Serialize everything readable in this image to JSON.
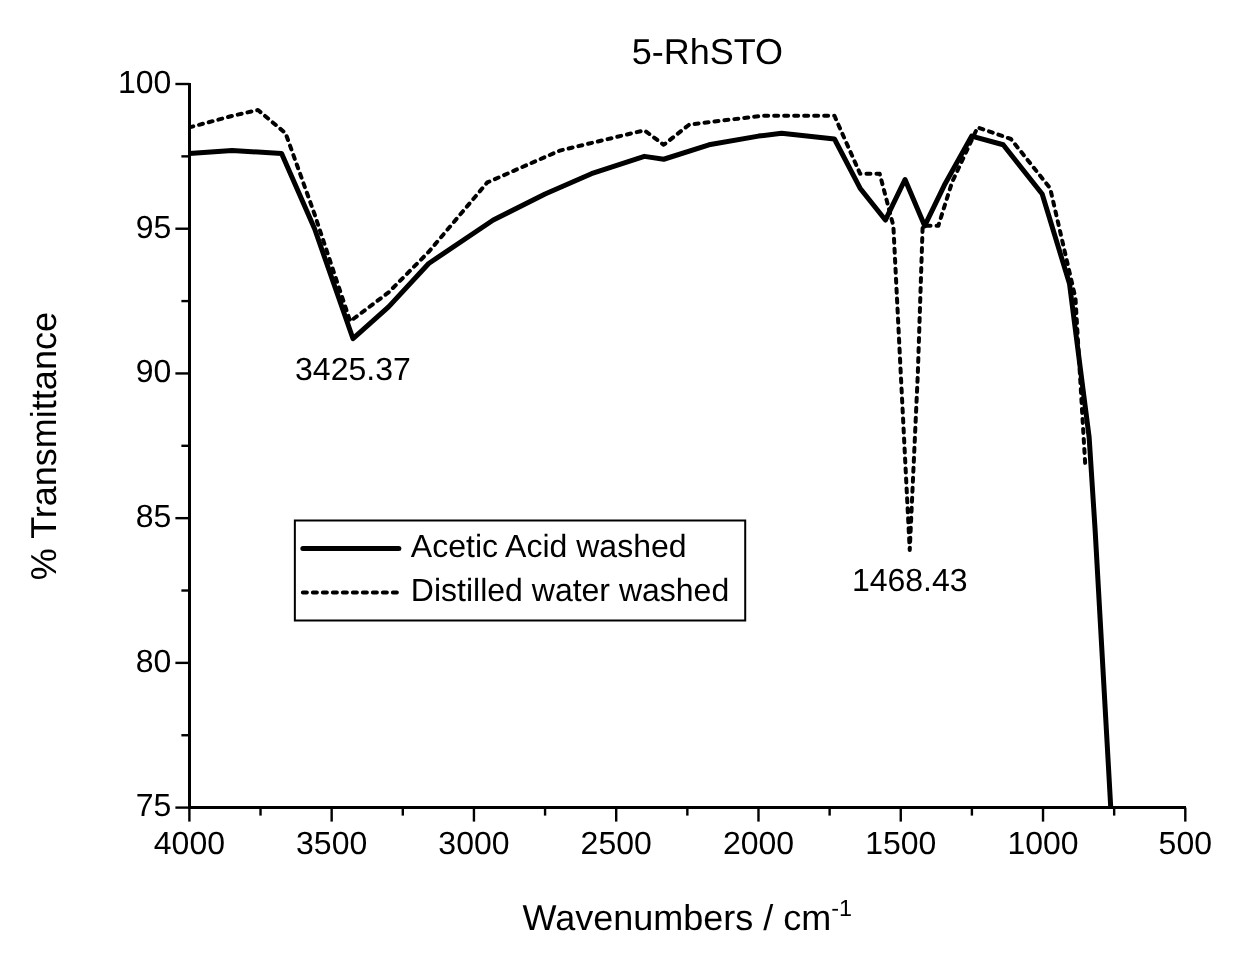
{
  "chart_data": {
    "type": "line",
    "title": "5-RhSTO",
    "xlabel": "Wavenumbers / cm$^{-1}$",
    "ylabel": "% Transmittance",
    "xlim": [
      4000,
      500
    ],
    "ylim": [
      75,
      100
    ],
    "xticks": [
      4000,
      {
        "value": 3750,
        "label": null
      },
      3500,
      {
        "value": 3250,
        "label": null
      },
      3000,
      {
        "value": 2750,
        "label": null
      },
      2500,
      {
        "value": 2250,
        "label": null
      },
      2000,
      {
        "value": 1750,
        "label": null
      },
      1500,
      {
        "value": 1250,
        "label": null
      },
      1000,
      {
        "value": 750,
        "label": null
      },
      500
    ],
    "yticks": [
      75,
      {
        "value": 77.5,
        "label": null
      },
      80,
      {
        "value": 82.5,
        "label": null
      },
      85,
      {
        "value": 87.5,
        "label": null
      },
      90,
      {
        "value": 92.5,
        "label": null
      },
      95,
      {
        "value": 97.5,
        "label": null
      },
      100
    ],
    "grid": false,
    "legend": "center left",
    "marker": "none",
    "series": [
      {
        "name": "Acetic Acid washed",
        "color": "#000000",
        "line_style": "solid",
        "x": [
          4000,
          3850,
          3676,
          3560,
          3425,
          3300,
          3159,
          2932,
          2750,
          2587,
          2401,
          2333,
          2174,
          2000,
          1919,
          1733,
          1643,
          1554,
          1485,
          1416,
          1347,
          1251,
          1140,
          1003,
          907,
          838,
          817,
          762
        ],
        "values": [
          97.6,
          97.7,
          97.6,
          95.0,
          91.2,
          92.3,
          93.8,
          95.3,
          96.2,
          96.9,
          97.5,
          97.4,
          97.9,
          98.2,
          98.3,
          98.1,
          96.4,
          95.3,
          96.7,
          95.1,
          96.5,
          98.2,
          97.9,
          96.2,
          93.1,
          87.8,
          84.6,
          75.0
        ]
      },
      {
        "name": "Distilled water washed",
        "color": "#000000",
        "line_style": "dotted",
        "x": [
          4000,
          3849,
          3759,
          3662,
          3560,
          3435,
          3300,
          3159,
          2953,
          2698,
          2401,
          2333,
          2243,
          1988,
          1733,
          1643,
          1574,
          1526,
          1500,
          1468.43,
          1440,
          1423,
          1368,
          1320,
          1230,
          1113,
          975,
          886,
          852
        ],
        "values": [
          98.5,
          98.9,
          99.1,
          98.3,
          95.5,
          91.8,
          92.8,
          94.2,
          96.6,
          97.7,
          98.4,
          97.9,
          98.6,
          98.9,
          98.9,
          96.9,
          96.9,
          95.1,
          90.0,
          83.9,
          90.0,
          95.1,
          95.1,
          96.6,
          98.5,
          98.1,
          96.4,
          92.6,
          86.9
        ]
      }
    ],
    "annotations": [
      {
        "text": "3425.37",
        "x": 3425.37,
        "y": 91.2
      },
      {
        "text": "1468.43",
        "x": 1468.43,
        "y": 83.9
      }
    ]
  }
}
